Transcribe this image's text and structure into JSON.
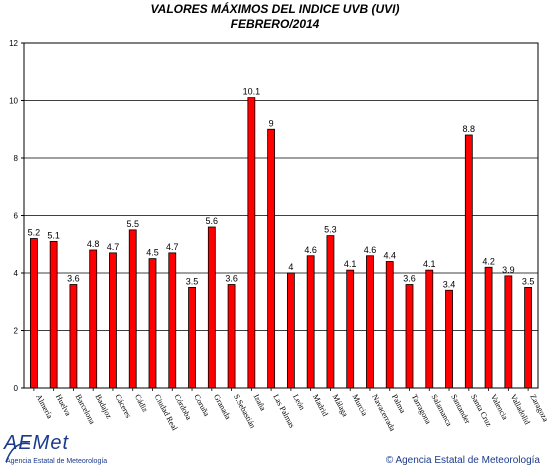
{
  "chart_data": {
    "type": "bar",
    "title": "VALORES MÁXIMOS DEL INDICE UVB (UVI)",
    "subtitle": "FEBRERO/2014",
    "xlabel": "",
    "ylabel": "",
    "ylim": [
      0,
      12
    ],
    "yticks": [
      "0",
      "2",
      "4",
      "6",
      "8",
      "10",
      "12"
    ],
    "grid": true,
    "bar_color": "#ff0000",
    "categories": [
      "Almería",
      "Huelva",
      "Barcelona",
      "Badajoz",
      "Cáceres",
      "Cádiz",
      "Ciudad Real",
      "Córdoba",
      "Coruña",
      "Granada",
      "S.Sebastián",
      "Izaña",
      "Las Palmas",
      "León",
      "Madrid",
      "Málaga",
      "Murcia",
      "Navacerrada",
      "Palma",
      "Tarragona",
      "Salamanca",
      "Santander",
      "Santa Cruz",
      "Valencia",
      "Valladolid",
      "Zaragoza"
    ],
    "values": [
      5.2,
      5.1,
      3.6,
      4.8,
      4.7,
      5.5,
      4.5,
      4.7,
      3.5,
      5.6,
      3.6,
      10.1,
      9,
      4,
      4.6,
      5.3,
      4.1,
      4.6,
      4.4,
      3.6,
      4.1,
      3.4,
      8.8,
      4.2,
      3.9,
      3.5
    ],
    "value_labels": [
      "5.2",
      "5.1",
      "3.6",
      "4.8",
      "4.7",
      "5.5",
      "4.5",
      "4.7",
      "3.5",
      "5.6",
      "3.6",
      "10.1",
      "9",
      "4",
      "4.6",
      "5.3",
      "4.1",
      "4.6",
      "4.4",
      "3.6",
      "4.1",
      "3.4",
      "8.8",
      "4.2",
      "3.9",
      "3.5"
    ]
  },
  "footer": {
    "logo_text": "AEMet",
    "logo_subtitle": "Agencia Estatal de Meteorología",
    "copyright": "© Agencia Estatal de Meteorología"
  }
}
